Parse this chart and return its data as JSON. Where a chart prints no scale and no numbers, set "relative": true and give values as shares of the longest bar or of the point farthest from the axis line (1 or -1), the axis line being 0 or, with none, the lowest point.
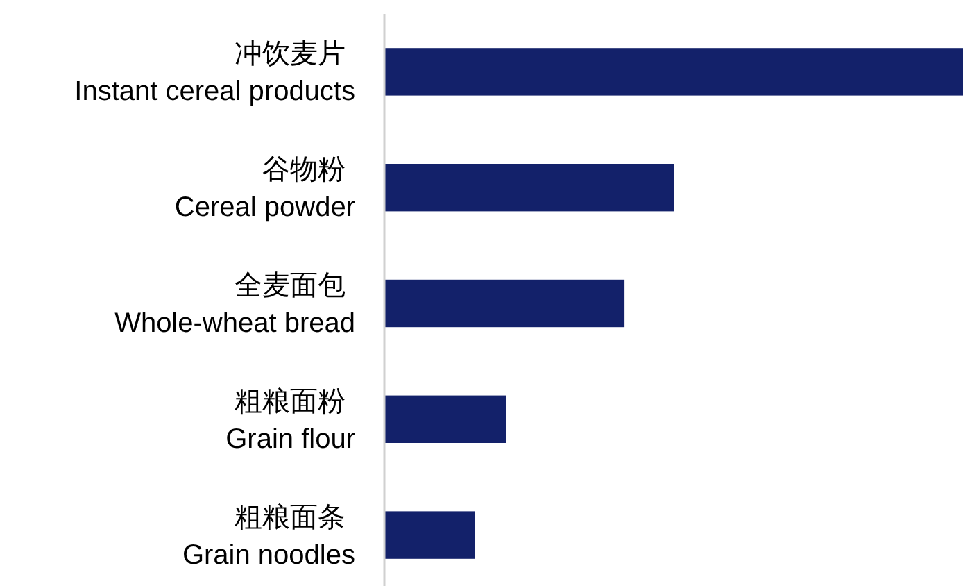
{
  "chart_data": {
    "type": "bar",
    "orientation": "horizontal",
    "relative": true,
    "categories": [
      "冲饮麦片\nInstant cereal products",
      "谷物粉\nCereal powder",
      "全麦面包\nWhole-wheat bread",
      "粗粮面粉\nGrain flour",
      "粗粮面条\nGrain noodles"
    ],
    "values": [
      1,
      0.5,
      0.415,
      0.21,
      0.157
    ],
    "color": "#13216a"
  }
}
